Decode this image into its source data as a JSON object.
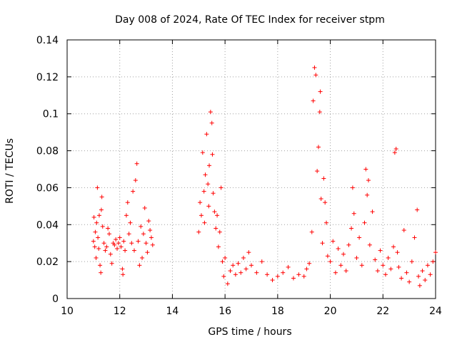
{
  "chart_data": {
    "type": "scatter",
    "title": "Day 008 of 2024, Rate Of TEC Index for receiver stpm",
    "xlabel": "GPS time / hours",
    "ylabel": "ROTI / TECUs",
    "xlim": [
      10,
      24
    ],
    "ylim": [
      0,
      0.14
    ],
    "xticks": [
      10,
      12,
      14,
      16,
      18,
      20,
      22,
      24
    ],
    "yticks": [
      0,
      0.02,
      0.04,
      0.06,
      0.08,
      0.1,
      0.12,
      0.14
    ],
    "xtick_labels": [
      "10",
      "12",
      "14",
      "16",
      "18",
      "20",
      "22",
      "24"
    ],
    "ytick_labels": [
      "0",
      "0.02",
      "0.04",
      "0.06",
      "0.08",
      "0.1",
      "0.12",
      "0.14"
    ],
    "grid": true,
    "marker": "+",
    "series": [
      {
        "name": "ROTI",
        "color": "#ff0000",
        "points": [
          [
            11.0,
            0.031
          ],
          [
            11.02,
            0.044
          ],
          [
            11.05,
            0.028
          ],
          [
            11.07,
            0.036
          ],
          [
            11.1,
            0.022
          ],
          [
            11.12,
            0.041
          ],
          [
            11.15,
            0.06
          ],
          [
            11.17,
            0.033
          ],
          [
            11.2,
            0.027
          ],
          [
            11.22,
            0.045
          ],
          [
            11.25,
            0.018
          ],
          [
            11.28,
            0.014
          ],
          [
            11.3,
            0.048
          ],
          [
            11.32,
            0.055
          ],
          [
            11.35,
            0.039
          ],
          [
            11.4,
            0.03
          ],
          [
            11.45,
            0.026
          ],
          [
            11.5,
            0.028
          ],
          [
            11.55,
            0.038
          ],
          [
            11.6,
            0.035
          ],
          [
            11.65,
            0.024
          ],
          [
            11.7,
            0.019
          ],
          [
            11.75,
            0.03
          ],
          [
            11.8,
            0.029
          ],
          [
            11.85,
            0.032
          ],
          [
            11.9,
            0.027
          ],
          [
            11.95,
            0.03
          ],
          [
            12.0,
            0.033
          ],
          [
            12.05,
            0.028
          ],
          [
            12.1,
            0.016
          ],
          [
            12.12,
            0.013
          ],
          [
            12.15,
            0.031
          ],
          [
            12.2,
            0.026
          ],
          [
            12.25,
            0.045
          ],
          [
            12.3,
            0.052
          ],
          [
            12.35,
            0.035
          ],
          [
            12.4,
            0.041
          ],
          [
            12.45,
            0.03
          ],
          [
            12.5,
            0.058
          ],
          [
            12.55,
            0.026
          ],
          [
            12.6,
            0.064
          ],
          [
            12.65,
            0.073
          ],
          [
            12.7,
            0.031
          ],
          [
            12.75,
            0.018
          ],
          [
            12.8,
            0.039
          ],
          [
            12.85,
            0.022
          ],
          [
            12.9,
            0.035
          ],
          [
            12.95,
            0.049
          ],
          [
            13.0,
            0.03
          ],
          [
            13.05,
            0.025
          ],
          [
            13.1,
            0.042
          ],
          [
            13.15,
            0.037
          ],
          [
            13.2,
            0.033
          ],
          [
            13.25,
            0.029
          ],
          [
            15.0,
            0.036
          ],
          [
            15.05,
            0.052
          ],
          [
            15.1,
            0.045
          ],
          [
            15.15,
            0.079
          ],
          [
            15.2,
            0.058
          ],
          [
            15.22,
            0.041
          ],
          [
            15.25,
            0.067
          ],
          [
            15.3,
            0.089
          ],
          [
            15.35,
            0.062
          ],
          [
            15.38,
            0.05
          ],
          [
            15.4,
            0.072
          ],
          [
            15.45,
            0.101
          ],
          [
            15.5,
            0.095
          ],
          [
            15.52,
            0.078
          ],
          [
            15.55,
            0.057
          ],
          [
            15.6,
            0.047
          ],
          [
            15.65,
            0.038
          ],
          [
            15.7,
            0.045
          ],
          [
            15.75,
            0.028
          ],
          [
            15.8,
            0.036
          ],
          [
            15.85,
            0.06
          ],
          [
            15.9,
            0.02
          ],
          [
            15.95,
            0.012
          ],
          [
            16.0,
            0.022
          ],
          [
            16.1,
            0.008
          ],
          [
            16.2,
            0.015
          ],
          [
            16.3,
            0.018
          ],
          [
            16.4,
            0.013
          ],
          [
            16.5,
            0.019
          ],
          [
            16.6,
            0.014
          ],
          [
            16.7,
            0.022
          ],
          [
            16.8,
            0.016
          ],
          [
            16.9,
            0.025
          ],
          [
            17.0,
            0.018
          ],
          [
            17.2,
            0.014
          ],
          [
            17.4,
            0.02
          ],
          [
            17.6,
            0.013
          ],
          [
            17.8,
            0.01
          ],
          [
            18.0,
            0.012
          ],
          [
            18.2,
            0.014
          ],
          [
            18.4,
            0.017
          ],
          [
            18.6,
            0.011
          ],
          [
            18.8,
            0.013
          ],
          [
            19.0,
            0.012
          ],
          [
            19.1,
            0.016
          ],
          [
            19.2,
            0.019
          ],
          [
            19.3,
            0.036
          ],
          [
            19.35,
            0.107
          ],
          [
            19.4,
            0.125
          ],
          [
            19.45,
            0.121
          ],
          [
            19.5,
            0.069
          ],
          [
            19.55,
            0.082
          ],
          [
            19.6,
            0.101
          ],
          [
            19.62,
            0.112
          ],
          [
            19.65,
            0.054
          ],
          [
            19.7,
            0.03
          ],
          [
            19.75,
            0.065
          ],
          [
            19.8,
            0.052
          ],
          [
            19.85,
            0.041
          ],
          [
            19.9,
            0.023
          ],
          [
            20.0,
            0.02
          ],
          [
            20.1,
            0.031
          ],
          [
            20.2,
            0.014
          ],
          [
            20.3,
            0.027
          ],
          [
            20.4,
            0.018
          ],
          [
            20.5,
            0.024
          ],
          [
            20.6,
            0.015
          ],
          [
            20.7,
            0.029
          ],
          [
            20.8,
            0.038
          ],
          [
            20.85,
            0.06
          ],
          [
            20.9,
            0.046
          ],
          [
            21.0,
            0.022
          ],
          [
            21.1,
            0.033
          ],
          [
            21.2,
            0.018
          ],
          [
            21.3,
            0.041
          ],
          [
            21.35,
            0.07
          ],
          [
            21.4,
            0.056
          ],
          [
            21.45,
            0.064
          ],
          [
            21.5,
            0.029
          ],
          [
            21.6,
            0.047
          ],
          [
            21.7,
            0.021
          ],
          [
            21.8,
            0.015
          ],
          [
            21.9,
            0.026
          ],
          [
            22.0,
            0.018
          ],
          [
            22.1,
            0.013
          ],
          [
            22.2,
            0.022
          ],
          [
            22.3,
            0.016
          ],
          [
            22.4,
            0.028
          ],
          [
            22.45,
            0.079
          ],
          [
            22.5,
            0.081
          ],
          [
            22.55,
            0.025
          ],
          [
            22.6,
            0.017
          ],
          [
            22.7,
            0.011
          ],
          [
            22.8,
            0.037
          ],
          [
            22.9,
            0.014
          ],
          [
            23.0,
            0.009
          ],
          [
            23.1,
            0.02
          ],
          [
            23.2,
            0.033
          ],
          [
            23.3,
            0.048
          ],
          [
            23.35,
            0.012
          ],
          [
            23.4,
            0.007
          ],
          [
            23.5,
            0.015
          ],
          [
            23.6,
            0.01
          ],
          [
            23.7,
            0.018
          ],
          [
            23.8,
            0.013
          ],
          [
            23.9,
            0.02
          ],
          [
            24.0,
            0.025
          ]
        ]
      }
    ]
  }
}
